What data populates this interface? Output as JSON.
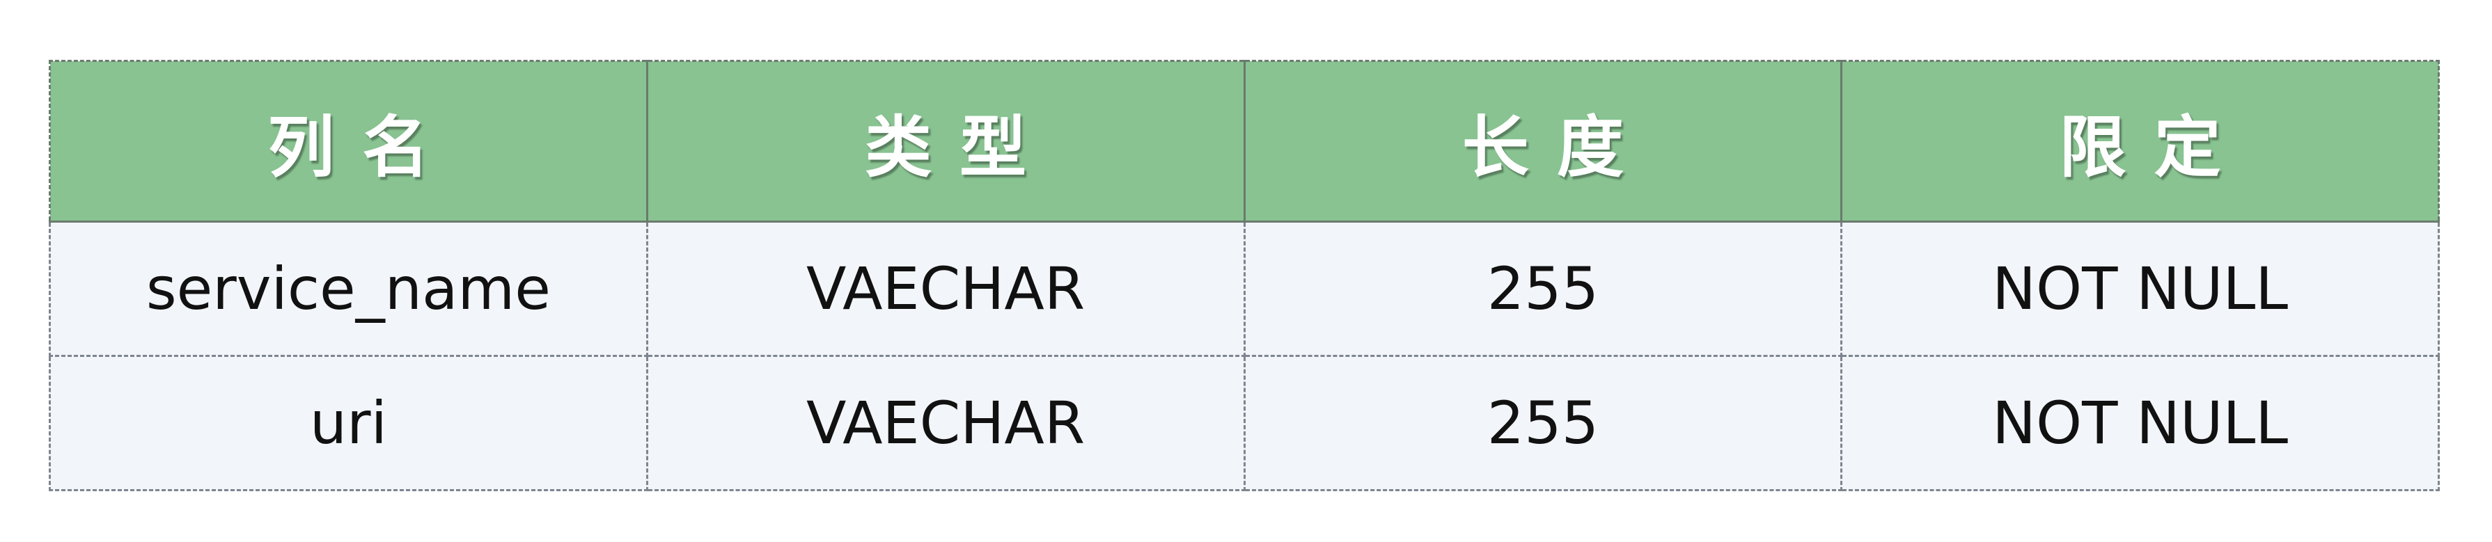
{
  "table": {
    "headers": [
      "列名",
      "类型",
      "长度",
      "限定"
    ],
    "rows": [
      [
        "service_name",
        "VAECHAR",
        "255",
        "NOT NULL"
      ],
      [
        "uri",
        "VAECHAR",
        "255",
        "NOT NULL"
      ]
    ]
  },
  "colors": {
    "header_bg": "#88c391",
    "header_text": "#ffffff",
    "row_bg": "#f2f5f9",
    "border": "#7e8590"
  }
}
